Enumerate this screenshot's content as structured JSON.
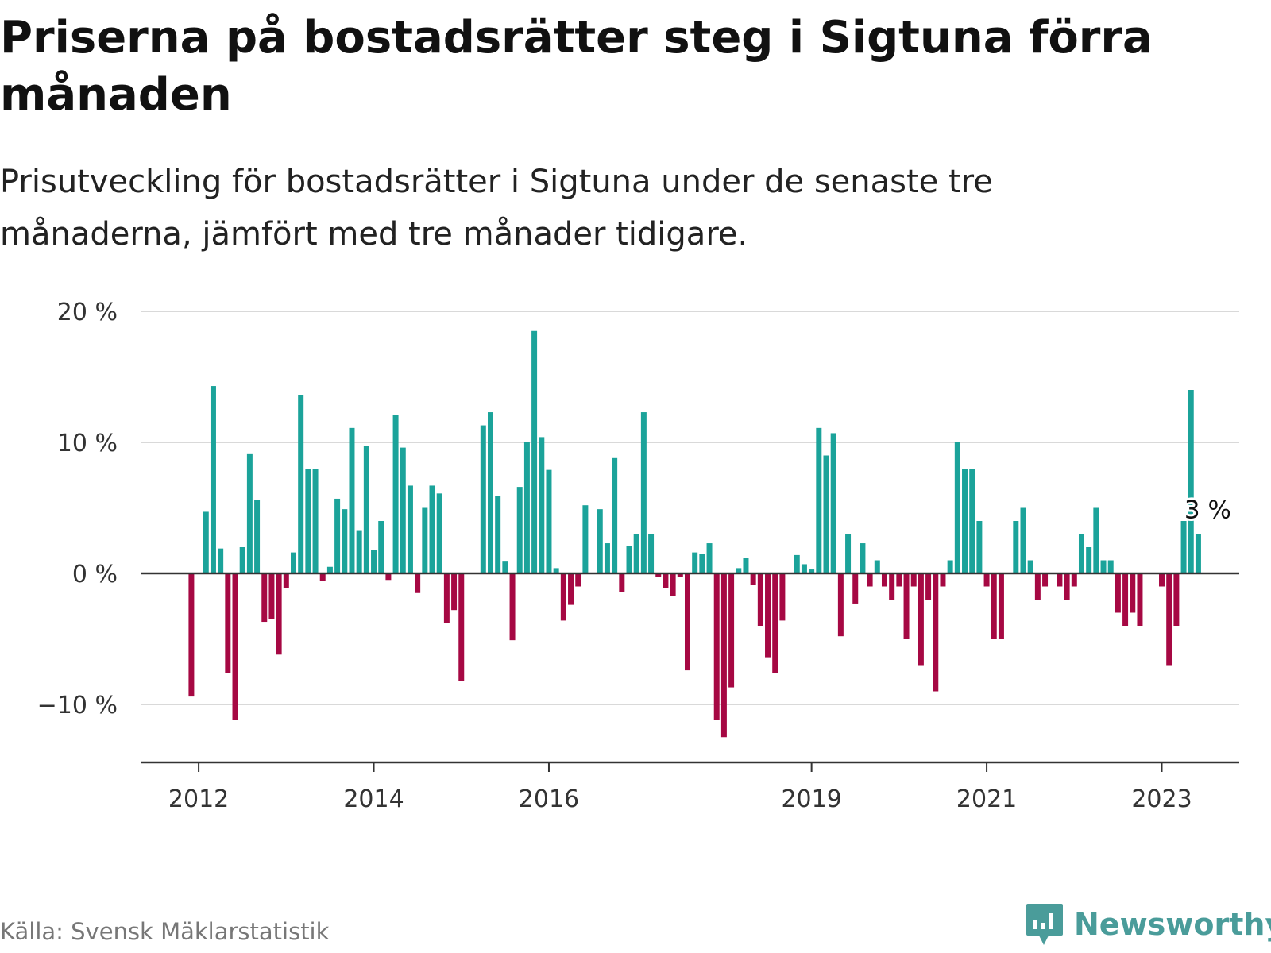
{
  "header": {
    "title": "Priserna på bostadsrätter steg i Sigtuna förra månaden",
    "subtitle": "Prisutveckling för bostadsrätter i Sigtuna under de senaste tre månaderna, jämfört med tre månader tidigare."
  },
  "footer": {
    "source": "Källa: Svensk Mäklarstatistik",
    "brand": "Newsworthy"
  },
  "colors": {
    "positive": "#1ba39a",
    "negative": "#a60843",
    "grid": "#d9d9d9",
    "zero_line": "#333333"
  },
  "chart_data": {
    "type": "bar",
    "title": "Priserna på bostadsrätter steg i Sigtuna förra månaden",
    "subtitle": "Prisutveckling för bostadsrätter i Sigtuna under de senaste tre månaderna, jämfört med tre månader tidigare.",
    "unit": "%",
    "x_start": "2011-12",
    "ylim": [
      -14.5,
      20.5
    ],
    "y_ticks": [
      -10,
      0,
      10,
      20
    ],
    "y_tick_labels": [
      "−10 %",
      "0 %",
      "10 %",
      "20 %"
    ],
    "x_tick_labels": [
      {
        "label": "2012",
        "month_index": 1
      },
      {
        "label": "2014",
        "month_index": 25
      },
      {
        "label": "2016",
        "month_index": 49
      },
      {
        "label": "2019",
        "month_index": 85
      },
      {
        "label": "2021",
        "month_index": 109
      },
      {
        "label": "2023",
        "month_index": 133
      }
    ],
    "values": [
      -9.4,
      null,
      4.7,
      14.3,
      1.9,
      -7.6,
      -11.2,
      2.0,
      9.1,
      5.6,
      -3.7,
      -3.5,
      -6.2,
      -1.1,
      1.6,
      13.6,
      8.0,
      8.0,
      -0.6,
      0.5,
      5.7,
      4.9,
      11.1,
      3.3,
      9.7,
      1.8,
      4.0,
      -0.5,
      12.1,
      9.6,
      6.7,
      -1.5,
      5.0,
      6.7,
      6.1,
      -3.8,
      -2.8,
      -8.2,
      null,
      null,
      11.3,
      12.3,
      5.9,
      0.9,
      -5.1,
      6.6,
      10.0,
      18.5,
      10.4,
      7.9,
      0.4,
      -3.6,
      -2.4,
      -1.0,
      5.2,
      null,
      4.9,
      2.3,
      8.8,
      -1.4,
      2.1,
      3.0,
      12.3,
      3.0,
      -0.3,
      -1.1,
      -1.7,
      -0.3,
      -7.4,
      1.6,
      1.5,
      2.3,
      -11.2,
      -12.5,
      -8.7,
      0.4,
      1.2,
      -0.9,
      -4.0,
      -6.4,
      -7.6,
      -3.6,
      null,
      1.4,
      0.7,
      0.3,
      11.1,
      9.0,
      10.7,
      -4.8,
      3.0,
      -2.3,
      2.3,
      -1.0,
      1.0,
      -1.0,
      -2.0,
      -1.0,
      -5.0,
      -1.0,
      -7.0,
      -2.0,
      -9.0,
      -1.0,
      1.0,
      10.0,
      8.0,
      8.0,
      4.0,
      -1.0,
      -5.0,
      -5.0,
      null,
      4.0,
      5.0,
      1.0,
      -2.0,
      -1.0,
      null,
      -1.0,
      -2.0,
      -1.0,
      3.0,
      2.0,
      5.0,
      1.0,
      1.0,
      -3.0,
      -4.0,
      -3.0,
      -4.0,
      null,
      null,
      -1.0,
      -7.0,
      -4.0,
      4.0,
      14.0,
      3.0
    ],
    "last_value_label": "3 %"
  }
}
